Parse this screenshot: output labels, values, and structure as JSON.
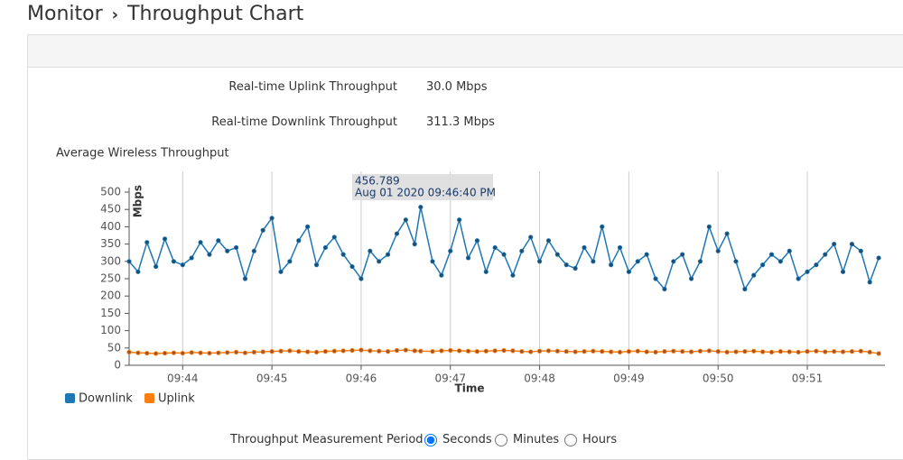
{
  "header": {
    "section": "Monitor",
    "title": "Throughput Chart"
  },
  "stats": [
    {
      "label": "Real-time Uplink Throughput",
      "value": "30.0 Mbps"
    },
    {
      "label": "Real-time Downlink Throughput",
      "value": "311.3 Mbps"
    }
  ],
  "chart_data": {
    "type": "line",
    "title": "Average Wireless Throughput",
    "x_label": "Time",
    "y_label": "Mbps",
    "x": [
      43.4,
      43.5,
      43.6,
      43.7,
      43.8,
      43.9,
      44.0,
      44.1,
      44.2,
      44.3,
      44.4,
      44.5,
      44.6,
      44.7,
      44.8,
      44.9,
      45.0,
      45.1,
      45.2,
      45.3,
      45.4,
      45.5,
      45.6,
      45.7,
      45.8,
      45.9,
      46.0,
      46.1,
      46.2,
      46.3,
      46.4,
      46.5,
      46.6,
      46.667,
      46.8,
      46.9,
      47.0,
      47.1,
      47.2,
      47.3,
      47.4,
      47.5,
      47.6,
      47.7,
      47.8,
      47.9,
      48.0,
      48.1,
      48.2,
      48.3,
      48.4,
      48.5,
      48.6,
      48.7,
      48.8,
      48.9,
      49.0,
      49.1,
      49.2,
      49.3,
      49.4,
      49.5,
      49.6,
      49.7,
      49.8,
      49.9,
      50.0,
      50.1,
      50.2,
      50.3,
      50.4,
      50.5,
      50.6,
      50.7,
      50.8,
      50.9,
      51.0,
      51.1,
      51.2,
      51.3,
      51.4,
      51.5,
      51.6,
      51.7,
      51.8
    ],
    "xlim": [
      43.4,
      51.87
    ],
    "xticks": [
      {
        "value": 44,
        "label": "09:44"
      },
      {
        "value": 45,
        "label": "09:45"
      },
      {
        "value": 46,
        "label": "09:46"
      },
      {
        "value": 47,
        "label": "09:47"
      },
      {
        "value": 48,
        "label": "09:48"
      },
      {
        "value": 49,
        "label": "09:49"
      },
      {
        "value": 50,
        "label": "09:50"
      },
      {
        "value": 51,
        "label": "09:51"
      }
    ],
    "ylim": [
      0,
      500
    ],
    "yticks": [
      0,
      50,
      100,
      150,
      200,
      250,
      300,
      350,
      400,
      450,
      500
    ],
    "grid": "x",
    "series": [
      {
        "name": "Downlink",
        "color": "#1f77b4",
        "values": [
          300,
          270,
          355,
          285,
          365,
          300,
          290,
          310,
          355,
          320,
          360,
          330,
          340,
          250,
          330,
          390,
          425,
          270,
          300,
          360,
          400,
          290,
          340,
          370,
          320,
          285,
          250,
          330,
          300,
          320,
          380,
          420,
          350,
          456.789,
          300,
          260,
          330,
          420,
          310,
          360,
          270,
          340,
          320,
          260,
          330,
          370,
          300,
          360,
          320,
          290,
          280,
          340,
          300,
          400,
          290,
          340,
          270,
          300,
          320,
          250,
          220,
          300,
          320,
          250,
          300,
          400,
          330,
          380,
          300,
          220,
          260,
          290,
          320,
          300,
          330,
          250,
          270,
          290,
          320,
          350,
          270,
          350,
          330,
          240,
          310
        ]
      },
      {
        "name": "Uplink",
        "color": "#ff7f0e",
        "values": [
          38,
          36,
          35,
          34,
          35,
          36,
          35,
          37,
          36,
          35,
          36,
          37,
          38,
          36,
          38,
          39,
          40,
          41,
          42,
          40,
          39,
          38,
          40,
          41,
          42,
          43,
          44,
          42,
          41,
          40,
          43,
          44,
          42,
          41,
          40,
          42,
          43,
          42,
          41,
          40,
          41,
          42,
          43,
          42,
          40,
          39,
          41,
          42,
          41,
          40,
          39,
          40,
          41,
          40,
          39,
          38,
          40,
          41,
          39,
          38,
          40,
          41,
          40,
          39,
          41,
          42,
          40,
          38,
          39,
          40,
          41,
          39,
          38,
          40,
          39,
          38,
          40,
          41,
          39,
          40,
          39,
          40,
          41,
          38,
          34
        ]
      }
    ],
    "tooltip": {
      "value": 456.789,
      "time": "Aug 01 2020 09:46:40 PM"
    }
  },
  "period": {
    "label": "Throughput Measurement Period",
    "options": [
      "Seconds",
      "Minutes",
      "Hours"
    ],
    "selected": 0
  }
}
